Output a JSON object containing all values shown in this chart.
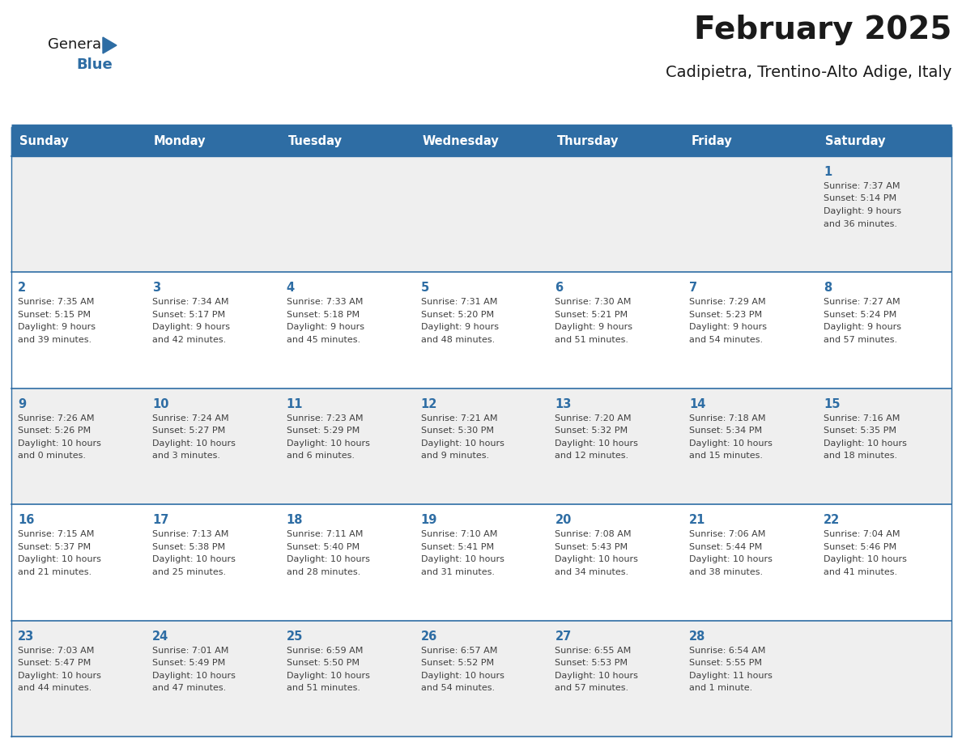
{
  "title": "February 2025",
  "subtitle": "Cadipietra, Trentino-Alto Adige, Italy",
  "days_of_week": [
    "Sunday",
    "Monday",
    "Tuesday",
    "Wednesday",
    "Thursday",
    "Friday",
    "Saturday"
  ],
  "header_bg": "#2E6DA4",
  "header_text": "#FFFFFF",
  "cell_bg_odd": "#EFEFEF",
  "cell_bg_even": "#FFFFFF",
  "divider_color": "#2E6DA4",
  "text_color": "#404040",
  "day_num_color": "#2E6DA4",
  "logo_general_color": "#1a1a1a",
  "logo_blue_color": "#2E6DA4",
  "title_fontsize": 28,
  "subtitle_fontsize": 14,
  "header_fontsize": 10.5,
  "day_num_fontsize": 10.5,
  "cell_fontsize": 8.0,
  "calendar_data": [
    [
      null,
      null,
      null,
      null,
      null,
      null,
      {
        "day": 1,
        "sunrise": "7:37 AM",
        "sunset": "5:14 PM",
        "dl1": "Daylight: 9 hours",
        "dl2": "and 36 minutes."
      }
    ],
    [
      {
        "day": 2,
        "sunrise": "7:35 AM",
        "sunset": "5:15 PM",
        "dl1": "Daylight: 9 hours",
        "dl2": "and 39 minutes."
      },
      {
        "day": 3,
        "sunrise": "7:34 AM",
        "sunset": "5:17 PM",
        "dl1": "Daylight: 9 hours",
        "dl2": "and 42 minutes."
      },
      {
        "day": 4,
        "sunrise": "7:33 AM",
        "sunset": "5:18 PM",
        "dl1": "Daylight: 9 hours",
        "dl2": "and 45 minutes."
      },
      {
        "day": 5,
        "sunrise": "7:31 AM",
        "sunset": "5:20 PM",
        "dl1": "Daylight: 9 hours",
        "dl2": "and 48 minutes."
      },
      {
        "day": 6,
        "sunrise": "7:30 AM",
        "sunset": "5:21 PM",
        "dl1": "Daylight: 9 hours",
        "dl2": "and 51 minutes."
      },
      {
        "day": 7,
        "sunrise": "7:29 AM",
        "sunset": "5:23 PM",
        "dl1": "Daylight: 9 hours",
        "dl2": "and 54 minutes."
      },
      {
        "day": 8,
        "sunrise": "7:27 AM",
        "sunset": "5:24 PM",
        "dl1": "Daylight: 9 hours",
        "dl2": "and 57 minutes."
      }
    ],
    [
      {
        "day": 9,
        "sunrise": "7:26 AM",
        "sunset": "5:26 PM",
        "dl1": "Daylight: 10 hours",
        "dl2": "and 0 minutes."
      },
      {
        "day": 10,
        "sunrise": "7:24 AM",
        "sunset": "5:27 PM",
        "dl1": "Daylight: 10 hours",
        "dl2": "and 3 minutes."
      },
      {
        "day": 11,
        "sunrise": "7:23 AM",
        "sunset": "5:29 PM",
        "dl1": "Daylight: 10 hours",
        "dl2": "and 6 minutes."
      },
      {
        "day": 12,
        "sunrise": "7:21 AM",
        "sunset": "5:30 PM",
        "dl1": "Daylight: 10 hours",
        "dl2": "and 9 minutes."
      },
      {
        "day": 13,
        "sunrise": "7:20 AM",
        "sunset": "5:32 PM",
        "dl1": "Daylight: 10 hours",
        "dl2": "and 12 minutes."
      },
      {
        "day": 14,
        "sunrise": "7:18 AM",
        "sunset": "5:34 PM",
        "dl1": "Daylight: 10 hours",
        "dl2": "and 15 minutes."
      },
      {
        "day": 15,
        "sunrise": "7:16 AM",
        "sunset": "5:35 PM",
        "dl1": "Daylight: 10 hours",
        "dl2": "and 18 minutes."
      }
    ],
    [
      {
        "day": 16,
        "sunrise": "7:15 AM",
        "sunset": "5:37 PM",
        "dl1": "Daylight: 10 hours",
        "dl2": "and 21 minutes."
      },
      {
        "day": 17,
        "sunrise": "7:13 AM",
        "sunset": "5:38 PM",
        "dl1": "Daylight: 10 hours",
        "dl2": "and 25 minutes."
      },
      {
        "day": 18,
        "sunrise": "7:11 AM",
        "sunset": "5:40 PM",
        "dl1": "Daylight: 10 hours",
        "dl2": "and 28 minutes."
      },
      {
        "day": 19,
        "sunrise": "7:10 AM",
        "sunset": "5:41 PM",
        "dl1": "Daylight: 10 hours",
        "dl2": "and 31 minutes."
      },
      {
        "day": 20,
        "sunrise": "7:08 AM",
        "sunset": "5:43 PM",
        "dl1": "Daylight: 10 hours",
        "dl2": "and 34 minutes."
      },
      {
        "day": 21,
        "sunrise": "7:06 AM",
        "sunset": "5:44 PM",
        "dl1": "Daylight: 10 hours",
        "dl2": "and 38 minutes."
      },
      {
        "day": 22,
        "sunrise": "7:04 AM",
        "sunset": "5:46 PM",
        "dl1": "Daylight: 10 hours",
        "dl2": "and 41 minutes."
      }
    ],
    [
      {
        "day": 23,
        "sunrise": "7:03 AM",
        "sunset": "5:47 PM",
        "dl1": "Daylight: 10 hours",
        "dl2": "and 44 minutes."
      },
      {
        "day": 24,
        "sunrise": "7:01 AM",
        "sunset": "5:49 PM",
        "dl1": "Daylight: 10 hours",
        "dl2": "and 47 minutes."
      },
      {
        "day": 25,
        "sunrise": "6:59 AM",
        "sunset": "5:50 PM",
        "dl1": "Daylight: 10 hours",
        "dl2": "and 51 minutes."
      },
      {
        "day": 26,
        "sunrise": "6:57 AM",
        "sunset": "5:52 PM",
        "dl1": "Daylight: 10 hours",
        "dl2": "and 54 minutes."
      },
      {
        "day": 27,
        "sunrise": "6:55 AM",
        "sunset": "5:53 PM",
        "dl1": "Daylight: 10 hours",
        "dl2": "and 57 minutes."
      },
      {
        "day": 28,
        "sunrise": "6:54 AM",
        "sunset": "5:55 PM",
        "dl1": "Daylight: 11 hours",
        "dl2": "and 1 minute."
      },
      null
    ]
  ]
}
